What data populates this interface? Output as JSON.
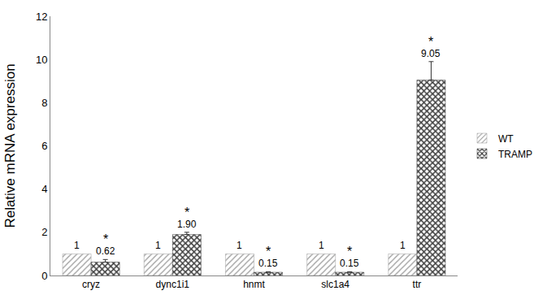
{
  "chart_data": {
    "type": "bar",
    "y_label": "Relative mRNA expression",
    "categories": [
      "cryz",
      "dync1i1",
      "hnmt",
      "slc1a4",
      "ttr"
    ],
    "ylim": [
      0,
      12
    ],
    "yticks": [
      0,
      2,
      4,
      6,
      8,
      10,
      12
    ],
    "grid": false,
    "legend": "right",
    "data_labels": true,
    "series": [
      {
        "name": "WT",
        "color": "#9a9a9a",
        "values": [
          1,
          1,
          1,
          1,
          1
        ]
      },
      {
        "name": "TRAMP",
        "color": "#404040",
        "values": [
          0.62,
          1.9,
          0.15,
          0.15,
          9.05
        ],
        "value_labels": [
          "0.62",
          "1.90",
          "0.15",
          "0.15",
          "9.05"
        ],
        "errors": [
          0.12,
          0.1,
          0.02,
          0.02,
          0.85
        ],
        "significance": [
          "*",
          "*",
          "*",
          "*",
          "*"
        ]
      }
    ]
  }
}
